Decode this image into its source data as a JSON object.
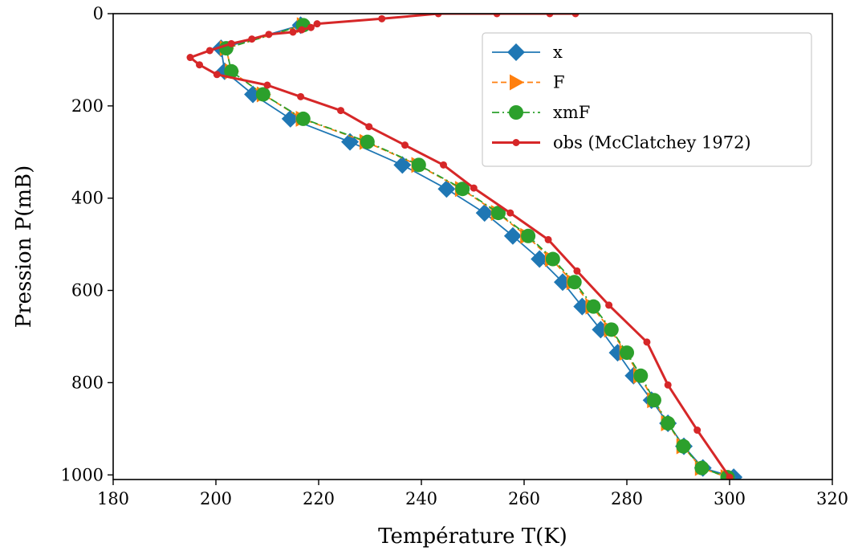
{
  "chart_data": {
    "type": "line",
    "xlabel": "Température T(K)",
    "ylabel": "Pression P(mB)",
    "xlim": [
      180,
      320
    ],
    "ylim": [
      1010,
      0
    ],
    "y_inverted": true,
    "xticks": [
      "180",
      "200",
      "220",
      "240",
      "260",
      "280",
      "300",
      "320"
    ],
    "yticks": [
      "0",
      "200",
      "400",
      "600",
      "800",
      "1000"
    ],
    "grid": false,
    "legend_position": "upper right",
    "series": [
      {
        "name": "x",
        "color": "#1f77b4",
        "marker": "diamond",
        "linestyle": "solid",
        "x": [
          216.5,
          201.0,
          201.7,
          207.2,
          214.5,
          226.1,
          236.3,
          244.9,
          252.3,
          257.8,
          263.0,
          267.5,
          271.3,
          274.9,
          278.2,
          281.3,
          284.8,
          288.0,
          291.1,
          294.8,
          300.8
        ],
        "y": [
          25,
          75,
          125,
          175,
          228,
          278,
          328,
          380,
          432,
          482,
          532,
          582,
          635,
          685,
          735,
          785,
          838,
          888,
          938,
          985,
          1005
        ]
      },
      {
        "name": "F",
        "color": "#ff7f0e",
        "marker": "triangle-right",
        "linestyle": "dashed",
        "x": [
          217.0,
          202.0,
          203.0,
          209.2,
          216.8,
          229.2,
          239.3,
          247.8,
          254.8,
          260.5,
          265.3,
          269.5,
          273.2,
          276.8,
          279.8,
          282.5,
          285.2,
          287.9,
          290.9,
          294.5,
          299.5
        ],
        "y": [
          25,
          75,
          125,
          175,
          228,
          278,
          328,
          380,
          432,
          482,
          532,
          582,
          635,
          685,
          735,
          785,
          838,
          888,
          938,
          985,
          1005
        ]
      },
      {
        "name": "xmF",
        "color": "#2ca02c",
        "marker": "circle",
        "linestyle": "dashdot",
        "x": [
          217.0,
          202.0,
          203.0,
          209.2,
          217.0,
          229.5,
          239.5,
          248.0,
          255.0,
          260.8,
          265.6,
          269.8,
          273.5,
          277.0,
          280.0,
          282.7,
          285.3,
          288.0,
          291.0,
          294.6,
          299.6
        ],
        "y": [
          25,
          75,
          125,
          175,
          228,
          278,
          328,
          380,
          432,
          482,
          532,
          582,
          635,
          685,
          735,
          785,
          838,
          888,
          938,
          985,
          1005
        ]
      },
      {
        "name": "obs (McClatchey 1972)",
        "color": "#d62728",
        "marker": "dot",
        "linestyle": "solid",
        "x": [
          270.0,
          265.0,
          254.7,
          243.3,
          232.3,
          219.7,
          218.5,
          216.7,
          215.0,
          210.3,
          207.0,
          203.0,
          198.8,
          195.0,
          196.8,
          200.2,
          210.0,
          216.5,
          224.3,
          229.8,
          236.8,
          244.3,
          250.2,
          257.3,
          264.7,
          270.3,
          276.5,
          283.9,
          288.0,
          293.7,
          300.0
        ],
        "y": [
          0,
          0,
          0,
          0,
          11,
          22,
          30,
          35,
          40,
          45,
          55,
          65,
          80,
          95,
          111,
          132,
          155,
          180,
          210,
          245,
          285,
          328,
          378,
          432,
          490,
          558,
          632,
          712,
          805,
          903,
          1005
        ]
      }
    ]
  }
}
